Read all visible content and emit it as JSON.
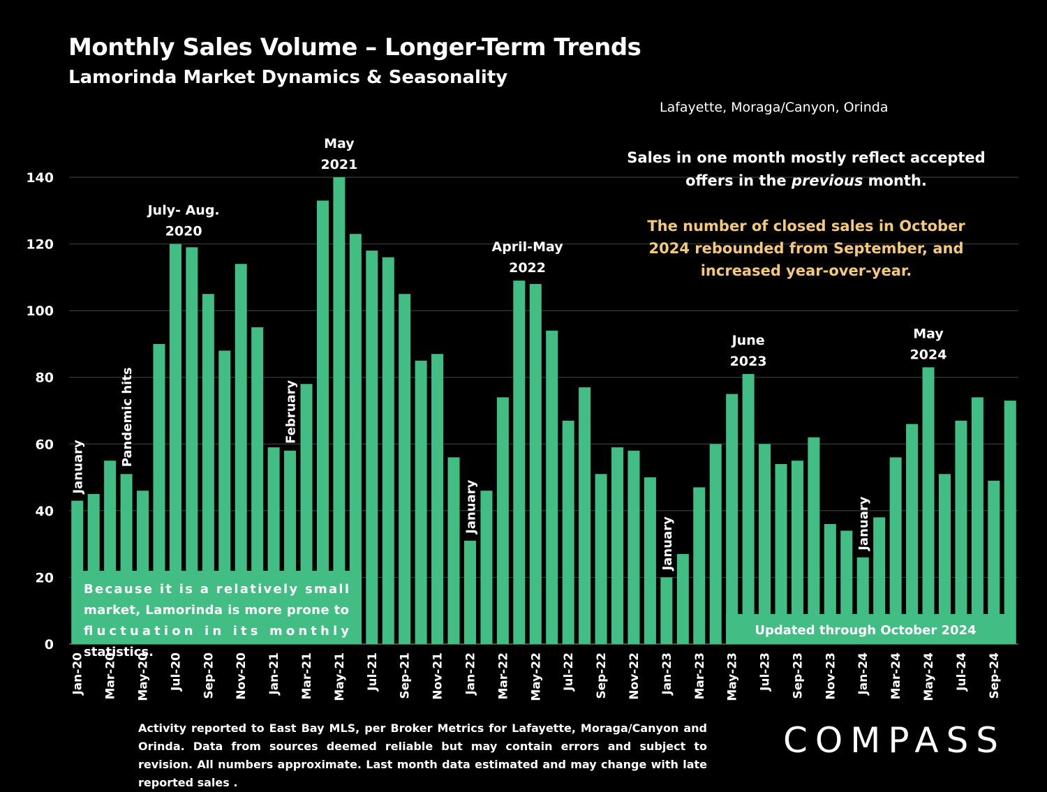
{
  "header": {
    "title": "Monthly Sales Volume – Longer-Term Trends",
    "subtitle": "Lamorinda Market Dynamics & Seasonality",
    "region": "Lafayette, Moraga/Canyon, Orinda"
  },
  "notes": {
    "sales_note_before": "Sales in one month mostly reflect accepted offers in the ",
    "sales_note_emphasis": "previous",
    "sales_note_after": " month.",
    "october_note": "The number of closed sales in October 2024 rebounded from September, and increased year-over-year."
  },
  "footnote": "Activity reported to East Bay MLS, per Broker Metrics for Lafayette, Moraga/Canyon and Orinda. Data from sources deemed reliable but may contain errors and subject to revision. All numbers approximate. Last month data estimated and may change with late reported sales .",
  "logo": "COMPASS",
  "colors": {
    "background": "#000000",
    "bar": "#42be85",
    "text": "#ffffff",
    "highlight": "#f4c97a",
    "gridline": "#3a3a3a"
  },
  "chart_data": {
    "type": "bar",
    "title": "Monthly Sales Volume – Longer-Term Trends",
    "ylim": [
      0,
      140
    ],
    "yticks": [
      0,
      20,
      40,
      60,
      80,
      100,
      120,
      140
    ],
    "grid": true,
    "categories": [
      "Jan-20",
      "Feb-20",
      "Mar-20",
      "Apr-20",
      "May-20",
      "Jun-20",
      "Jul-20",
      "Aug-20",
      "Sep-20",
      "Oct-20",
      "Nov-20",
      "Dec-20",
      "Jan-21",
      "Feb-21",
      "Mar-21",
      "Apr-21",
      "May-21",
      "Jun-21",
      "Jul-21",
      "Aug-21",
      "Sep-21",
      "Oct-21",
      "Nov-21",
      "Dec-21",
      "Jan-22",
      "Feb-22",
      "Mar-22",
      "Apr-22",
      "May-22",
      "Jun-22",
      "Jul-22",
      "Aug-22",
      "Sep-22",
      "Oct-22",
      "Nov-22",
      "Dec-22",
      "Jan-23",
      "Feb-23",
      "Mar-23",
      "Apr-23",
      "May-23",
      "Jun-23",
      "Jul-23",
      "Aug-23",
      "Sep-23",
      "Oct-23",
      "Nov-23",
      "Dec-23",
      "Jan-24",
      "Feb-24",
      "Mar-24",
      "Apr-24",
      "May-24",
      "Jun-24",
      "Jul-24",
      "Aug-24",
      "Sep-24",
      "Oct-24"
    ],
    "x_tick_labels": [
      "Jan-20",
      "",
      "Mar-20",
      "",
      "May-20",
      "",
      "Jul-20",
      "",
      "Sep-20",
      "",
      "Nov-20",
      "",
      "Jan-21",
      "",
      "Mar-21",
      "",
      "May-21",
      "",
      "Jul-21",
      "",
      "Sep-21",
      "",
      "Nov-21",
      "",
      "Jan-22",
      "",
      "Mar-22",
      "",
      "May-22",
      "",
      "Jul-22",
      "",
      "Sep-22",
      "",
      "Nov-22",
      "",
      "Jan-23",
      "",
      "Mar-23",
      "",
      "May-23",
      "",
      "Jul-23",
      "",
      "Sep-23",
      "",
      "Nov-23",
      "",
      "Jan-24",
      "",
      "Mar-24",
      "",
      "May-24",
      "",
      "Jul-24",
      "",
      "Sep-24",
      ""
    ],
    "values": [
      43,
      45,
      55,
      51,
      46,
      90,
      120,
      119,
      105,
      88,
      114,
      95,
      59,
      58,
      78,
      133,
      140,
      123,
      118,
      116,
      105,
      85,
      87,
      56,
      31,
      46,
      74,
      109,
      108,
      94,
      67,
      77,
      51,
      59,
      58,
      50,
      20,
      27,
      47,
      60,
      75,
      81,
      60,
      54,
      55,
      62,
      36,
      34,
      26,
      38,
      56,
      66,
      83,
      51,
      67,
      74,
      49,
      73
    ],
    "annotations": [
      {
        "text": "January",
        "index": 0,
        "rotated": true
      },
      {
        "text": "Pandemic hits",
        "index": 3,
        "rotated": true
      },
      {
        "text": "July- Aug.|2020",
        "index": 6.5,
        "rotated": false
      },
      {
        "text": "February",
        "index": 13,
        "rotated": true
      },
      {
        "text": "May|2021",
        "index": 16,
        "rotated": false
      },
      {
        "text": "January",
        "index": 24,
        "rotated": true
      },
      {
        "text": "April-May|2022",
        "index": 27.5,
        "rotated": false
      },
      {
        "text": "January",
        "index": 36,
        "rotated": true
      },
      {
        "text": "June|2023",
        "index": 41,
        "rotated": false
      },
      {
        "text": "January",
        "index": 48,
        "rotated": true
      },
      {
        "text": "May|2024",
        "index": 52,
        "rotated": false
      }
    ],
    "callouts": [
      {
        "text": "Because it is a relatively small market, Lamorinda is more prone to fluctuation in its monthly statistics.",
        "position": "bottom-left"
      },
      {
        "text": "Updated through October 2024",
        "position": "bottom-right"
      }
    ]
  }
}
